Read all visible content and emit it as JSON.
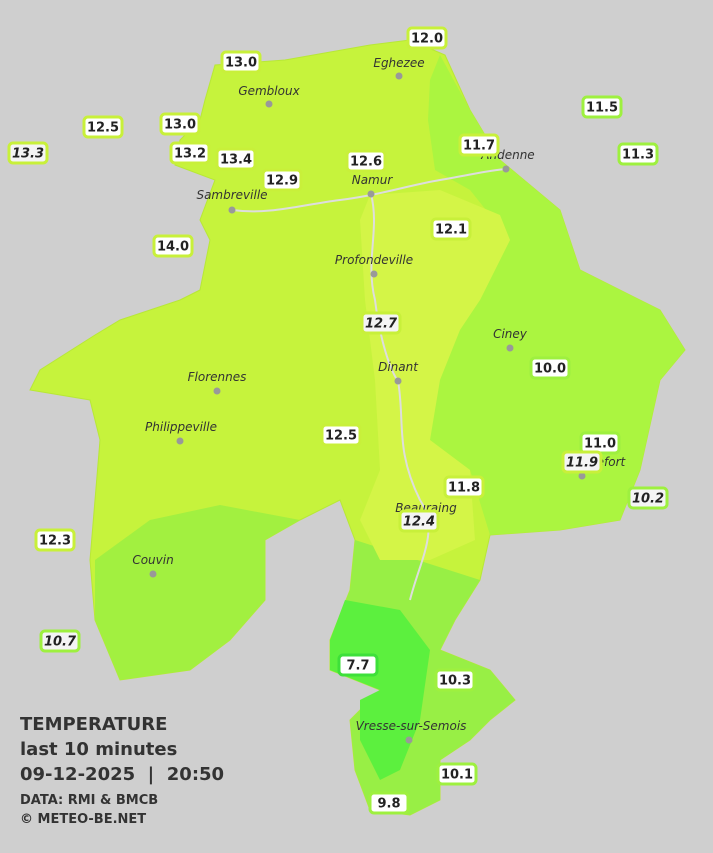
{
  "header": {
    "title": "TEMPERATURE",
    "subtitle": "last 10 minutes",
    "timestamp": "09-12-2025  |  20:50",
    "source": "DATA: RMI & BMCB",
    "copyright": "© METEO-BE.NET"
  },
  "stations": [
    {
      "label": "12.0"
    },
    {
      "label": "13.0"
    },
    {
      "label": "12.5"
    },
    {
      "label": "13.0"
    },
    {
      "label": "11.5"
    },
    {
      "label": "13.3",
      "italic": true
    },
    {
      "label": "13.2"
    },
    {
      "label": "13.4"
    },
    {
      "label": "11.7"
    },
    {
      "label": "11.3"
    },
    {
      "label": "12.6"
    },
    {
      "label": "12.9"
    },
    {
      "label": "12.1"
    },
    {
      "label": "14.0"
    },
    {
      "label": "12.7",
      "italic": true
    },
    {
      "label": "10.0"
    },
    {
      "label": "12.5"
    },
    {
      "label": "11.0"
    },
    {
      "label": "11.9",
      "italic": true
    },
    {
      "label": "11.8"
    },
    {
      "label": "10.2",
      "italic": true
    },
    {
      "label": "12.4",
      "italic": true
    },
    {
      "label": "12.3"
    },
    {
      "label": "10.7",
      "italic": true
    },
    {
      "label": "7.7"
    },
    {
      "label": "10.3"
    },
    {
      "label": "10.1"
    },
    {
      "label": "9.8"
    }
  ],
  "cities": [
    "Eghezee",
    "Gembloux",
    "Andenne",
    "Namur",
    "Sambreville",
    "Profondeville",
    "Ciney",
    "Florennes",
    "Dinant",
    "Philippeville",
    "Rochefort",
    "Beauraing",
    "Couvin",
    "Vresse-sur-Semois"
  ]
}
